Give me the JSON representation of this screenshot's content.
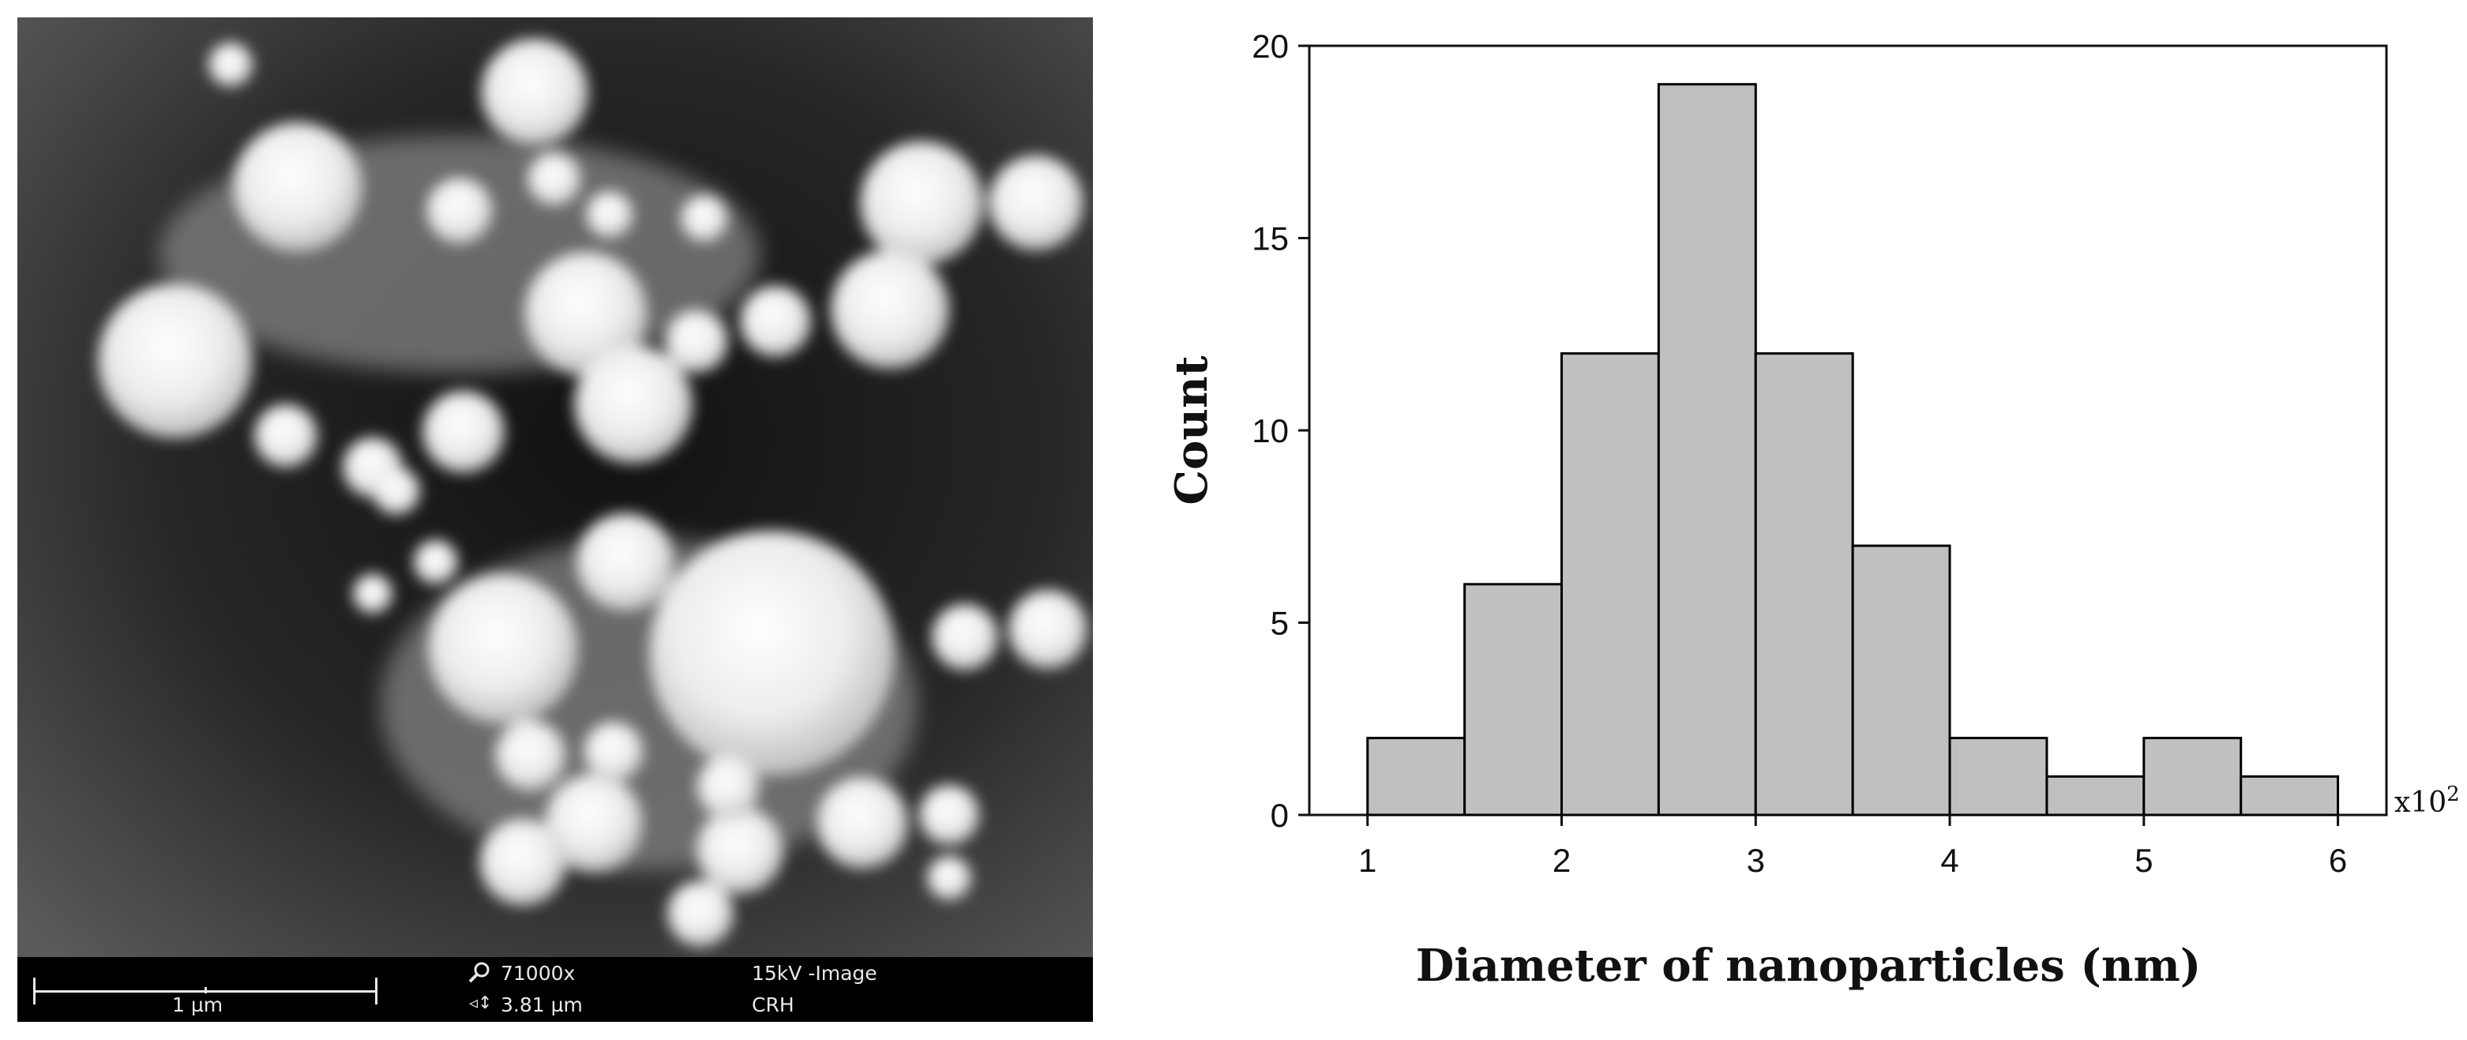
{
  "sem": {
    "scale_label": "1 µm",
    "magnification": "71000x",
    "field_width": "3.81 µm",
    "beam": "15kV -Image",
    "lab": "CRH",
    "magnify_icon": "magnifier-icon",
    "width_icon": "field-width-icon"
  },
  "chart_data": {
    "type": "bar",
    "bins": [
      {
        "from": 1.0,
        "to": 1.5,
        "count": 2
      },
      {
        "from": 1.5,
        "to": 2.0,
        "count": 6
      },
      {
        "from": 2.0,
        "to": 2.5,
        "count": 12
      },
      {
        "from": 2.5,
        "to": 3.0,
        "count": 19
      },
      {
        "from": 3.0,
        "to": 3.5,
        "count": 12
      },
      {
        "from": 3.5,
        "to": 4.0,
        "count": 7
      },
      {
        "from": 4.0,
        "to": 4.5,
        "count": 2
      },
      {
        "from": 4.5,
        "to": 5.0,
        "count": 1
      },
      {
        "from": 5.0,
        "to": 5.5,
        "count": 2
      },
      {
        "from": 5.5,
        "to": 6.0,
        "count": 1
      }
    ],
    "xlabel": "Diameter of nanoparticles (nm)",
    "ylabel": "Count",
    "x_multiplier_base": "x10",
    "x_multiplier_exp": "2",
    "xlim": [
      0.7,
      6.25
    ],
    "ylim": [
      0,
      20
    ],
    "xticks": [
      1,
      2,
      3,
      4,
      5,
      6
    ],
    "yticks": [
      0,
      5,
      10,
      15,
      20
    ],
    "bar_color": "#c0c0c0",
    "edge_color": "#000000",
    "grid": false,
    "legend": "none"
  }
}
